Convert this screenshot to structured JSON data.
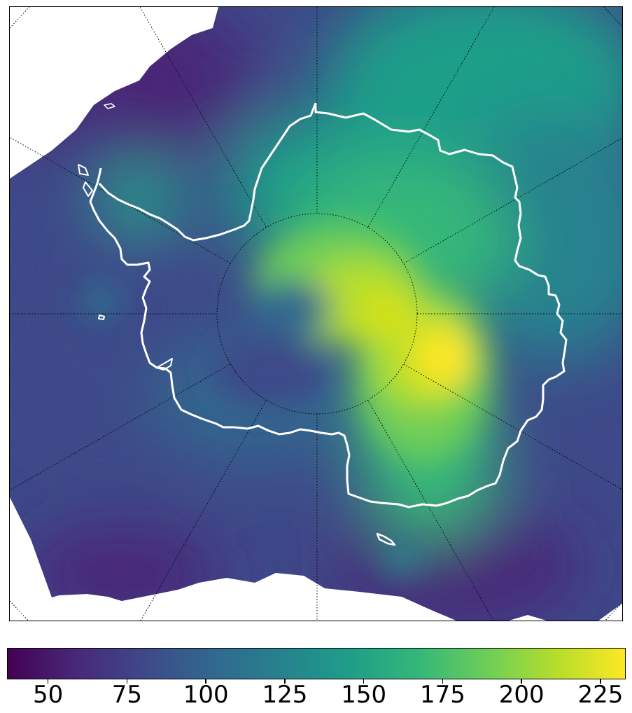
{
  "map": {
    "projection": "south-polar-stereographic",
    "graticule_style": "dotted-black",
    "coastline_color": "#ffffff",
    "background_color": "#ffffff",
    "colormap": "viridis"
  },
  "colorbar": {
    "orientation": "horizontal",
    "range": [
      37,
      233
    ],
    "ticks": [
      {
        "value": 50,
        "label": "50"
      },
      {
        "value": 75,
        "label": "75"
      },
      {
        "value": 100,
        "label": "100"
      },
      {
        "value": 125,
        "label": "125"
      },
      {
        "value": 150,
        "label": "150"
      },
      {
        "value": 175,
        "label": "175"
      },
      {
        "value": 200,
        "label": "200"
      },
      {
        "value": 225,
        "label": "225"
      }
    ],
    "colors": [
      "#440154",
      "#482878",
      "#3e4989",
      "#31688e",
      "#26828e",
      "#1f9e89",
      "#35b779",
      "#6ece58",
      "#b5de2b",
      "#fde725"
    ]
  }
}
